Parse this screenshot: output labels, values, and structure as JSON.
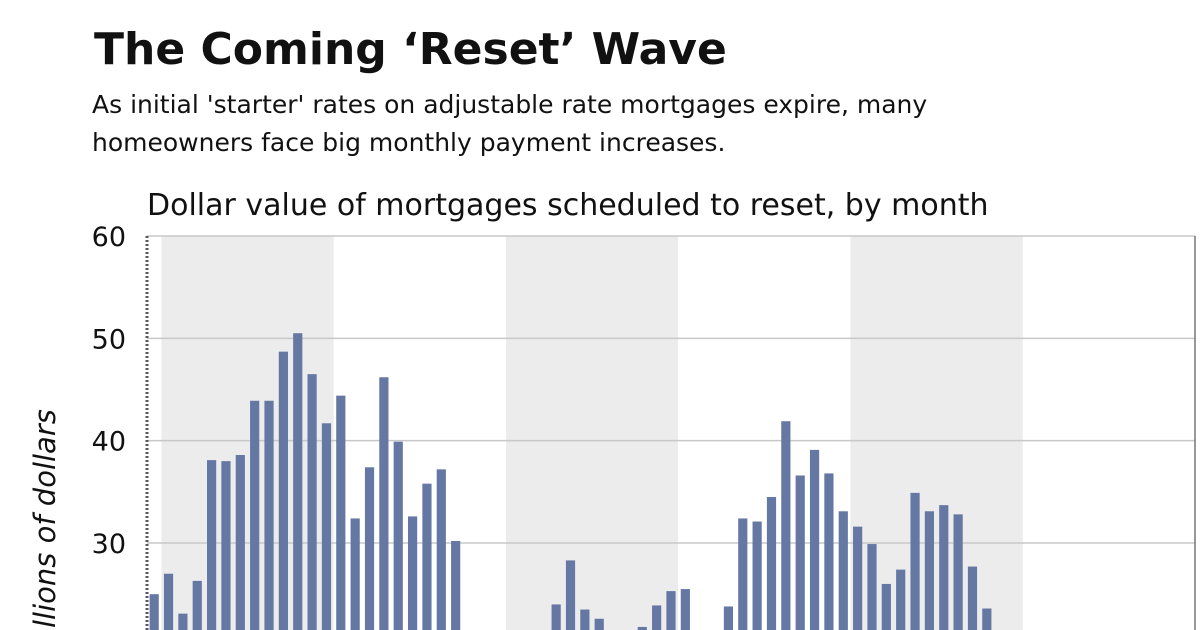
{
  "chart_data": {
    "type": "bar",
    "title": "The Coming ‘Reset’ Wave",
    "subtitle": [
      "As initial 'starter' rates on adjustable rate mortgages expire, many",
      "homeowners face big monthly payment increases."
    ],
    "chart_title": "Dollar value of mortgages scheduled to reset, by month",
    "y_label": "llions of dollars",
    "color": "#6577a3",
    "categories": [
      null,
      null,
      null,
      null,
      null,
      null,
      null,
      null,
      null,
      null,
      null,
      null,
      null,
      null,
      null,
      null,
      null,
      null,
      null,
      null,
      null,
      null,
      null,
      null,
      null,
      null,
      null,
      null,
      null,
      null,
      null,
      null,
      null,
      null,
      null,
      null,
      null,
      null,
      null,
      null,
      null,
      null,
      null,
      null,
      null,
      null,
      null,
      null,
      null,
      null,
      null,
      null,
      null,
      null,
      null,
      null,
      null,
      null,
      null,
      null,
      null,
      null,
      null,
      null,
      null,
      null,
      null,
      null,
      null,
      null,
      null,
      null,
      null
    ],
    "values": [
      25.0,
      27.0,
      23.1,
      26.3,
      38.1,
      38.0,
      38.6,
      43.9,
      43.9,
      48.7,
      50.5,
      46.5,
      41.7,
      44.4,
      32.4,
      37.4,
      46.2,
      39.9,
      32.6,
      35.8,
      37.2,
      30.2,
      null,
      null,
      null,
      null,
      null,
      null,
      24.0,
      28.3,
      23.5,
      22.6,
      null,
      null,
      21.8,
      23.9,
      25.3,
      25.5,
      null,
      null,
      23.8,
      32.4,
      32.1,
      34.5,
      41.9,
      36.6,
      39.1,
      36.8,
      33.1,
      31.6,
      29.9,
      26.0,
      27.4,
      34.9,
      33.1,
      33.7,
      32.8,
      27.7,
      23.6,
      null,
      null,
      null,
      null,
      null,
      null,
      null,
      null,
      null,
      null,
      null,
      null,
      null,
      null
    ],
    "ylim": [
      21.5,
      60
    ],
    "yticks": [
      30,
      40,
      50,
      60
    ],
    "grid": true
  }
}
